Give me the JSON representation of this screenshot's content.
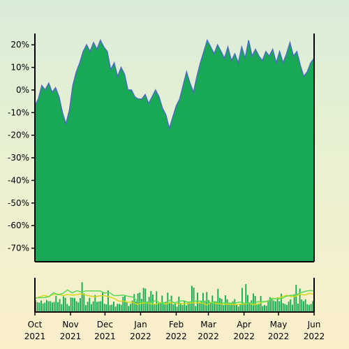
{
  "chart_data": [
    {
      "type": "area",
      "title": "",
      "xlabel": "",
      "ylabel": "",
      "x_tick_labels": [
        {
          "month": "Oct",
          "year": "2021"
        },
        {
          "month": "Nov",
          "year": "2021"
        },
        {
          "month": "Dec",
          "year": "2021"
        },
        {
          "month": "Jan",
          "year": "2022"
        },
        {
          "month": "Feb",
          "year": "2022"
        },
        {
          "month": "Mar",
          "year": "2022"
        },
        {
          "month": "Apr",
          "year": "2022"
        },
        {
          "month": "May",
          "year": "2022"
        },
        {
          "month": "Jun",
          "year": "2022"
        }
      ],
      "xlim": [
        "2021-10-01",
        "2022-06-01"
      ],
      "y_tick_labels": [
        "20%",
        "10%",
        "0%",
        "-10%",
        "-20%",
        "-30%",
        "-40%",
        "-50%",
        "-60%",
        "-70%"
      ],
      "ylim": [
        -76,
        25
      ],
      "grid": false,
      "fill_color": "#19a855",
      "line_color": "#4a6cc0",
      "series": [
        {
          "values": [
            [
              "2021-10-01",
              -7
            ],
            [
              "2021-10-04",
              -4
            ],
            [
              "2021-10-07",
              2
            ],
            [
              "2021-10-10",
              0
            ],
            [
              "2021-10-13",
              3
            ],
            [
              "2021-10-16",
              -1
            ],
            [
              "2021-10-19",
              1
            ],
            [
              "2021-10-22",
              -3
            ],
            [
              "2021-10-25",
              -10
            ],
            [
              "2021-10-28",
              -15
            ],
            [
              "2021-10-31",
              -9
            ],
            [
              "2021-11-03",
              2
            ],
            [
              "2021-11-06",
              8
            ],
            [
              "2021-11-09",
              12
            ],
            [
              "2021-11-12",
              17
            ],
            [
              "2021-11-15",
              20
            ],
            [
              "2021-11-18",
              17
            ],
            [
              "2021-11-21",
              21
            ],
            [
              "2021-11-24",
              18
            ],
            [
              "2021-11-27",
              22
            ],
            [
              "2021-11-30",
              19
            ],
            [
              "2021-12-03",
              17
            ],
            [
              "2021-12-06",
              9
            ],
            [
              "2021-12-09",
              12
            ],
            [
              "2021-12-12",
              6
            ],
            [
              "2021-12-15",
              10
            ],
            [
              "2021-12-18",
              7
            ],
            [
              "2021-12-21",
              0
            ],
            [
              "2021-12-24",
              0
            ],
            [
              "2021-12-27",
              -3
            ],
            [
              "2021-12-30",
              -4
            ],
            [
              "2022-01-02",
              -4
            ],
            [
              "2022-01-05",
              -2
            ],
            [
              "2022-01-08",
              -6
            ],
            [
              "2022-01-11",
              -3
            ],
            [
              "2022-01-14",
              0
            ],
            [
              "2022-01-17",
              -3
            ],
            [
              "2022-01-20",
              -8
            ],
            [
              "2022-01-23",
              -11
            ],
            [
              "2022-01-26",
              -17
            ],
            [
              "2022-01-29",
              -12
            ],
            [
              "2022-02-01",
              -7
            ],
            [
              "2022-02-04",
              -4
            ],
            [
              "2022-02-07",
              2
            ],
            [
              "2022-02-10",
              8
            ],
            [
              "2022-02-13",
              3
            ],
            [
              "2022-02-16",
              -1
            ],
            [
              "2022-02-19",
              6
            ],
            [
              "2022-02-22",
              12
            ],
            [
              "2022-02-25",
              17
            ],
            [
              "2022-02-28",
              22
            ],
            [
              "2022-03-03",
              19
            ],
            [
              "2022-03-06",
              16
            ],
            [
              "2022-03-09",
              20
            ],
            [
              "2022-03-12",
              17
            ],
            [
              "2022-03-15",
              14
            ],
            [
              "2022-03-18",
              19
            ],
            [
              "2022-03-21",
              13
            ],
            [
              "2022-03-24",
              16
            ],
            [
              "2022-03-27",
              12
            ],
            [
              "2022-03-30",
              19
            ],
            [
              "2022-04-02",
              14
            ],
            [
              "2022-04-05",
              22
            ],
            [
              "2022-04-08",
              15
            ],
            [
              "2022-04-11",
              18
            ],
            [
              "2022-04-14",
              15
            ],
            [
              "2022-04-17",
              13
            ],
            [
              "2022-04-20",
              17
            ],
            [
              "2022-04-23",
              15
            ],
            [
              "2022-04-26",
              18
            ],
            [
              "2022-04-29",
              12
            ],
            [
              "2022-05-02",
              17
            ],
            [
              "2022-05-05",
              12
            ],
            [
              "2022-05-08",
              16
            ],
            [
              "2022-05-11",
              21
            ],
            [
              "2022-05-14",
              15
            ],
            [
              "2022-05-17",
              17
            ],
            [
              "2022-05-20",
              11
            ],
            [
              "2022-05-23",
              6
            ],
            [
              "2022-05-26",
              8
            ],
            [
              "2022-05-29",
              12
            ],
            [
              "2022-06-01",
              14
            ]
          ]
        }
      ]
    },
    {
      "type": "bar",
      "title": "",
      "xlabel": "",
      "ylabel": "",
      "bar_color": "#1aa855",
      "overlay_line_colors": [
        "#d8d81a",
        "#5ad85a"
      ],
      "note": "secondary volume-style panel without printed axis values"
    }
  ]
}
